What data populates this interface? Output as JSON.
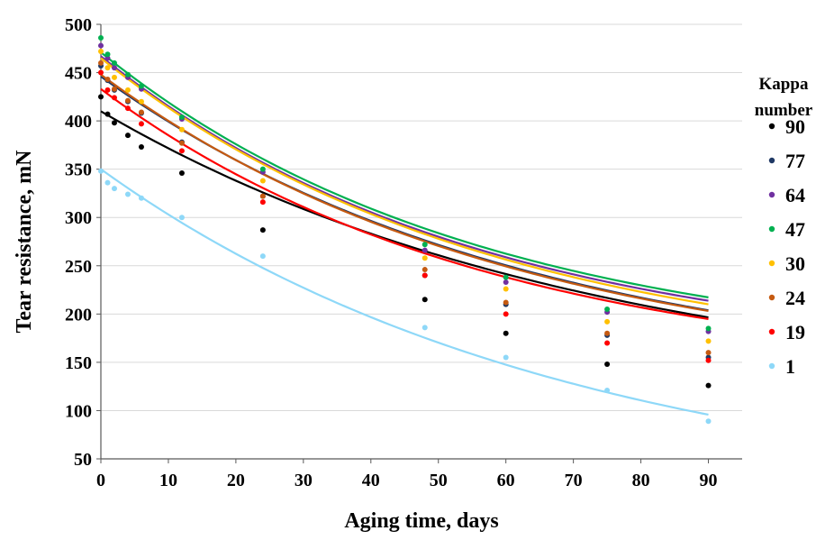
{
  "chart_data": {
    "type": "scatter",
    "title": "",
    "xlabel": "Aging time, days",
    "ylabel": "Tear resistance, mN",
    "xlim": [
      0,
      95
    ],
    "ylim": [
      50,
      500
    ],
    "x_ticks": [
      0,
      10,
      20,
      30,
      40,
      50,
      60,
      70,
      80,
      90
    ],
    "y_ticks": [
      50,
      100,
      150,
      200,
      250,
      300,
      350,
      400,
      450,
      500
    ],
    "grid": "horizontal",
    "legend": {
      "title": [
        "Kappa",
        "number"
      ],
      "position": "right"
    },
    "series": [
      {
        "name": "90",
        "color": "#000000",
        "points": [
          [
            0,
            425
          ],
          [
            1,
            407
          ],
          [
            2,
            398
          ],
          [
            4,
            385
          ],
          [
            6,
            373
          ],
          [
            12,
            346
          ],
          [
            24,
            287
          ],
          [
            48,
            215
          ],
          [
            60,
            180
          ],
          [
            75,
            148
          ],
          [
            90,
            126
          ]
        ],
        "fit": [
          410,
          107,
          0.01355
        ]
      },
      {
        "name": "77",
        "color": "#1f3864",
        "points": [
          [
            0,
            457
          ],
          [
            1,
            442
          ],
          [
            2,
            432
          ],
          [
            4,
            420
          ],
          [
            6,
            408
          ],
          [
            12,
            378
          ],
          [
            24,
            322
          ],
          [
            48,
            240
          ],
          [
            60,
            210
          ],
          [
            75,
            178
          ],
          [
            90,
            155
          ]
        ],
        "fit": [
          446,
          127,
          0.01582
        ]
      },
      {
        "name": "64",
        "color": "#7030a0",
        "points": [
          [
            0,
            478
          ],
          [
            1,
            465
          ],
          [
            2,
            455
          ],
          [
            4,
            445
          ],
          [
            6,
            433
          ],
          [
            12,
            402
          ],
          [
            24,
            347
          ],
          [
            48,
            266
          ],
          [
            60,
            233
          ],
          [
            75,
            202
          ],
          [
            90,
            182
          ]
        ],
        "fit": [
          467,
          150,
          0.01782
        ]
      },
      {
        "name": "47",
        "color": "#00b050",
        "points": [
          [
            0,
            486
          ],
          [
            1,
            469
          ],
          [
            2,
            460
          ],
          [
            4,
            448
          ],
          [
            6,
            436
          ],
          [
            12,
            404
          ],
          [
            24,
            350
          ],
          [
            48,
            272
          ],
          [
            60,
            238
          ],
          [
            75,
            205
          ],
          [
            90,
            185
          ]
        ],
        "fit": [
          471,
          153,
          0.01777
        ]
      },
      {
        "name": "30",
        "color": "#ffc000",
        "points": [
          [
            0,
            472
          ],
          [
            1,
            455
          ],
          [
            2,
            445
          ],
          [
            4,
            432
          ],
          [
            6,
            420
          ],
          [
            12,
            391
          ],
          [
            24,
            338
          ],
          [
            48,
            258
          ],
          [
            60,
            226
          ],
          [
            75,
            192
          ],
          [
            90,
            172
          ]
        ],
        "fit": [
          465,
          142,
          0.0173
        ]
      },
      {
        "name": "24",
        "color": "#c55a11",
        "points": [
          [
            0,
            460
          ],
          [
            1,
            443
          ],
          [
            2,
            433
          ],
          [
            4,
            421
          ],
          [
            6,
            409
          ],
          [
            12,
            377
          ],
          [
            24,
            322
          ],
          [
            48,
            246
          ],
          [
            60,
            212
          ],
          [
            75,
            180
          ],
          [
            90,
            160
          ]
        ],
        "fit": [
          448,
          130,
          0.01633
        ]
      },
      {
        "name": "19",
        "color": "#ff0000",
        "points": [
          [
            0,
            450
          ],
          [
            1,
            432
          ],
          [
            2,
            424
          ],
          [
            4,
            413
          ],
          [
            6,
            397
          ],
          [
            12,
            369
          ],
          [
            24,
            316
          ],
          [
            48,
            240
          ],
          [
            60,
            200
          ],
          [
            75,
            170
          ],
          [
            90,
            152
          ]
        ],
        "fit": [
          433,
          131,
          0.01727
        ]
      },
      {
        "name": "1",
        "color": "#8ed8f8",
        "points": [
          [
            0,
            348
          ],
          [
            1,
            336
          ],
          [
            2,
            330
          ],
          [
            4,
            324
          ],
          [
            6,
            320
          ],
          [
            12,
            300
          ],
          [
            24,
            260
          ],
          [
            48,
            186
          ],
          [
            60,
            155
          ],
          [
            75,
            121
          ],
          [
            90,
            89
          ]
        ],
        "fit": [
          350,
          0,
          0.0144
        ]
      }
    ]
  }
}
